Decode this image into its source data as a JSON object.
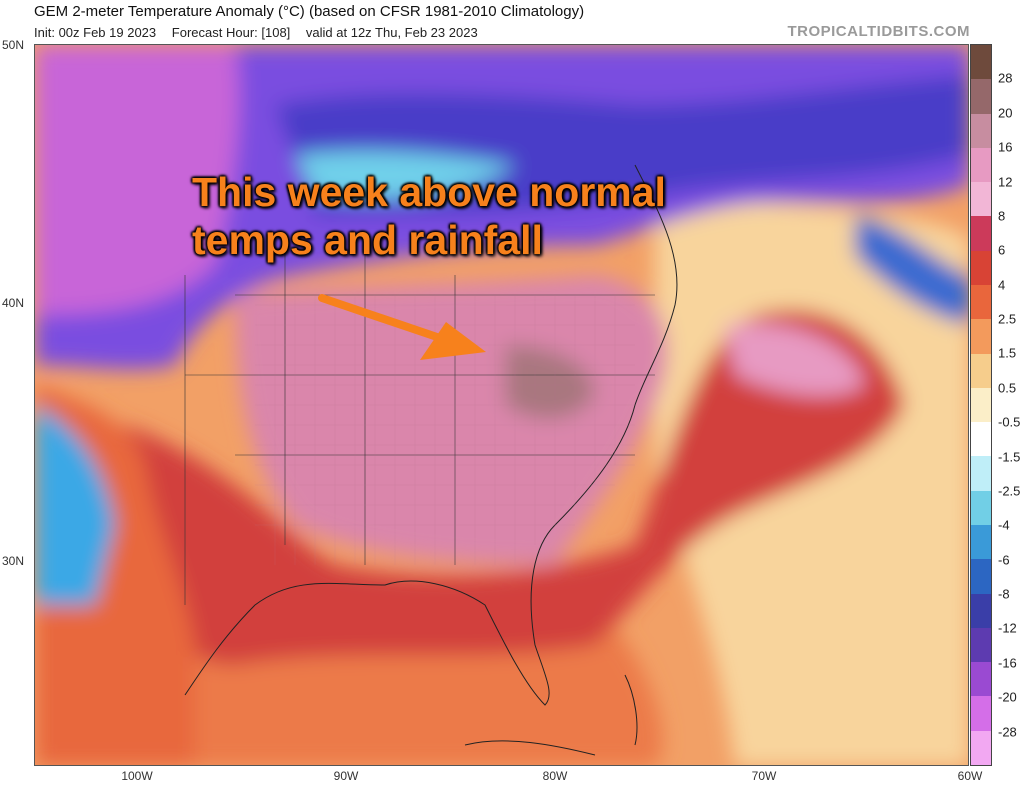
{
  "header": {
    "title": "GEM 2-meter Temperature Anomaly (°C) (based on CFSR 1981-2010 Climatology)",
    "init": "Init: 00z Feb 19 2023",
    "forecast_hour": "Forecast Hour: [108]",
    "valid": "valid at 12z Thu, Feb 23 2023",
    "brand": "TROPICALTIDBITS.COM"
  },
  "annotation": {
    "line1": "This week above normal",
    "line2": "temps and rainfall"
  },
  "axes": {
    "lat_labels": [
      "50N",
      "40N",
      "30N"
    ],
    "lon_labels": [
      "100W",
      "90W",
      "80W",
      "70W",
      "60W"
    ]
  },
  "colorbar": {
    "labels": [
      "28",
      "20",
      "16",
      "12",
      "8",
      "6",
      "4",
      "2.5",
      "1.5",
      "0.5",
      "-0.5",
      "-1.5",
      "-2.5",
      "-4",
      "-6",
      "-8",
      "-12",
      "-16",
      "-20",
      "-28"
    ],
    "colors": [
      "#6e4a3c",
      "#95686a",
      "#c78da0",
      "#e79ac2",
      "#f2b6d6",
      "#cc3a5a",
      "#d84335",
      "#e9663c",
      "#f39a5c",
      "#f6cd8c",
      "#fbeec8",
      "#ffffff",
      "#bfeef8",
      "#71cfe6",
      "#3a9ad8",
      "#2c66c2",
      "#3a3ea8",
      "#5d3bb0",
      "#9a4ad2",
      "#d46ee8",
      "#f2a8f2"
    ]
  },
  "colors": {
    "cold_deep": "#4a3cc8",
    "cold_mid": "#7a4ee0",
    "cold_light": "#3aa8e6",
    "warm_pink": "#d77fa6",
    "warm_red": "#d23e3e",
    "warm_orange": "#ec7444",
    "warm_light": "#f7c892",
    "annotation": "#f7811c"
  }
}
